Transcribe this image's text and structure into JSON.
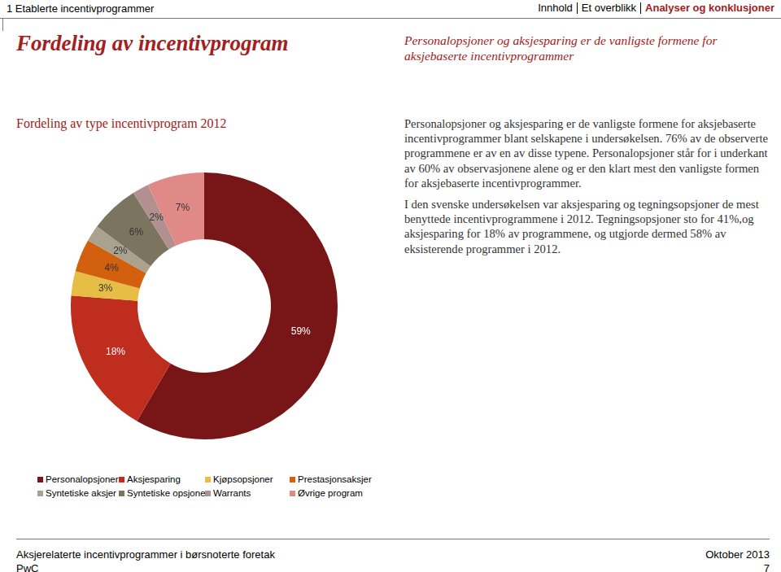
{
  "header": {
    "section": "1 Etablerte incentivprogrammer",
    "nav": [
      "Innhold",
      "Et overblikk",
      "Analyser og konklusjoner"
    ]
  },
  "title": "Fordeling av incentivprogram",
  "subtitle": "Personalopsjoner og aksjesparing er de vanligste formene for aksjebaserte incentivprogrammer",
  "paragraphs": [
    "Personalopsjoner og aksjesparing er de vanligste formene for aksjebaserte incentivprogrammer blant selskapene i undersøkelsen. 76% av de observerte programmene er av en av disse typene. Personalopsjoner står for i underkant av 60% av observasjonene alene og er den klart mest den vanligste formen for aksjebaserte incentivprogrammer.",
    "I den svenske undersøkelsen var aksjesparing og tegningsopsjoner de mest benyttede incentivprogrammene i 2012. Tegningsopsjoner sto for 41%,og aksjesparing for 18% av programmene, og utgjorde dermed 58% av eksisterende programmer i 2012."
  ],
  "footer": {
    "left": [
      "Aksjerelaterte incentivprogrammer i børsnoterte foretak",
      "PwC"
    ],
    "right": [
      "Oktober 2013",
      "7"
    ]
  },
  "chart_data": {
    "type": "doughnut",
    "title": "Fordeling av type incentivprogram 2012",
    "categories": [
      "Personalopsjoner",
      "Aksjesparing",
      "Kjøpsopsjoner",
      "Prestasjonsaksjer",
      "Syntetiske aksjer",
      "Syntetiske opsjoner",
      "Warrants",
      "Øvrige program"
    ],
    "values": [
      59,
      18,
      3,
      4,
      2,
      6,
      2,
      7
    ],
    "value_labels": [
      "59%",
      "18%",
      "3%",
      "4%",
      "2%",
      "6%",
      "2%",
      "7%"
    ],
    "colors": [
      "#781517",
      "#be2d1e",
      "#e6bd45",
      "#d2600f",
      "#a9a28f",
      "#7b7560",
      "#b39090",
      "#e08a88"
    ],
    "data_labels": true,
    "legend": "bottom"
  }
}
